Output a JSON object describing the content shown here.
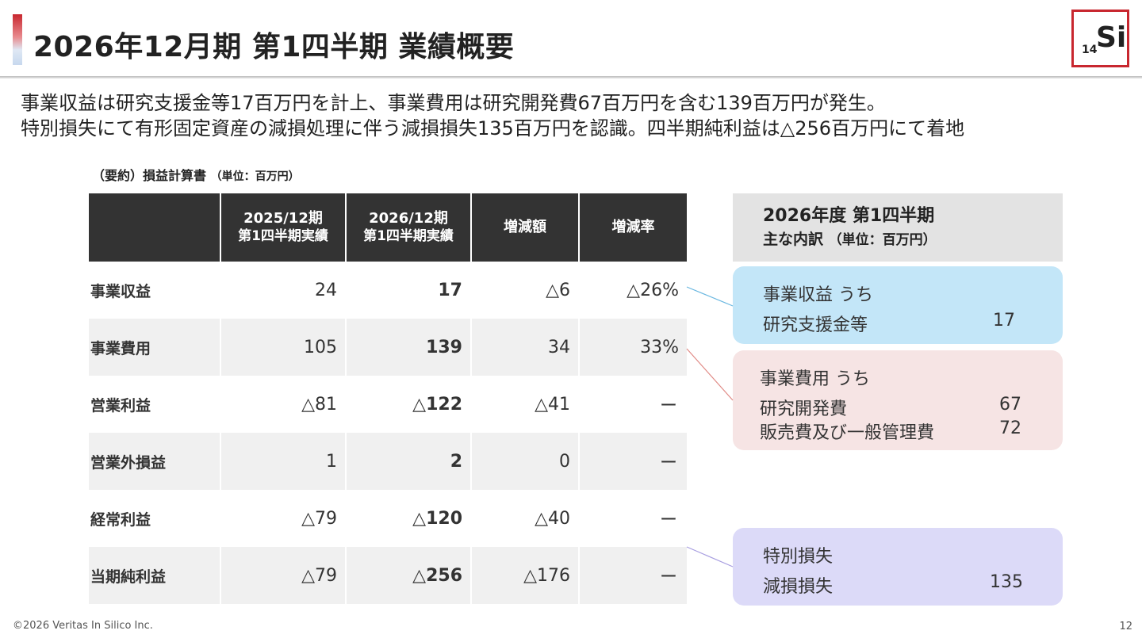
{
  "header": {
    "title": "2026年12月期 第1四半期 業績概要",
    "logo_main": "Si",
    "logo_sub": "14"
  },
  "summary": [
    "事業収益は研究支援金等17百万円を計上、事業費用は研究開発費67百万円を含む139百万円が発生。",
    "特別損失にて有形固定資産の減損処理に伴う減損損失135百万円を認識。四半期純利益は△256百万円にて着地"
  ],
  "table": {
    "caption": "（要約）損益計算書",
    "unit": "（単位：百万円）",
    "headers": [
      {
        "line1": "",
        "line2": ""
      },
      {
        "line1": "2025/12期",
        "line2": "第1四半期実績"
      },
      {
        "line1": "2026/12期",
        "line2": "第1四半期実績"
      },
      {
        "line1": "増減額",
        "line2": ""
      },
      {
        "line1": "増減率",
        "line2": ""
      }
    ],
    "rows": [
      {
        "label": "事業収益",
        "prev": "24",
        "curr": "17",
        "diff": "△6",
        "rate": "△26%"
      },
      {
        "label": "事業費用",
        "prev": "105",
        "curr": "139",
        "diff": "34",
        "rate": "33%"
      },
      {
        "label": "営業利益",
        "prev": "△81",
        "curr": "△122",
        "diff": "△41",
        "rate": "ー"
      },
      {
        "label": "営業外損益",
        "prev": "1",
        "curr": "2",
        "diff": "0",
        "rate": "ー"
      },
      {
        "label": "経常利益",
        "prev": "△79",
        "curr": "△120",
        "diff": "△40",
        "rate": "ー"
      },
      {
        "label": "当期純利益",
        "prev": "△79",
        "curr": "△256",
        "diff": "△176",
        "rate": "ー"
      }
    ]
  },
  "breakdown": {
    "title": "2026年度 第1四半期",
    "subtitle": "主な内訳",
    "unit": "（単位：百万円）",
    "revenue": {
      "heading": "事業収益 うち",
      "items": [
        {
          "label": "研究支援金等",
          "value": "17"
        }
      ]
    },
    "expense": {
      "heading": "事業費用 うち",
      "items": [
        {
          "label": "研究開発費",
          "value": "67"
        },
        {
          "label": "販売費及び一般管理費",
          "value": "72"
        }
      ]
    },
    "special_loss": {
      "heading": "特別損失",
      "items": [
        {
          "label": "減損損失",
          "value": "135"
        }
      ]
    }
  },
  "colors": {
    "accent_red": "#c8272f",
    "header_dark": "#333333",
    "box_blue": "#c3e6f8",
    "box_pink": "#f6e4e4",
    "box_purple": "#dcdaf8"
  },
  "footer": {
    "copyright": "©2026 Veritas In Silico Inc.",
    "page_number": "12"
  }
}
